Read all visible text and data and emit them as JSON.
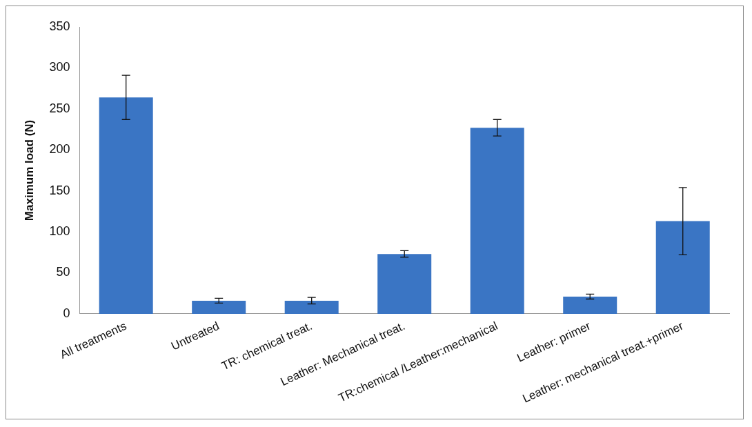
{
  "chart_data": {
    "type": "bar",
    "ylabel": "Maximum load (N)",
    "categories": [
      "All treatments",
      "Untreated",
      "TR: chemical treat.",
      "Leather: Mechanical treat.",
      "TR:chemical /Leather:mechanical",
      "Leather: primer",
      "Leather: mechanical treat.+primer"
    ],
    "values": [
      264,
      16,
      16,
      73,
      227,
      21,
      113
    ],
    "errors": [
      27,
      3,
      4,
      4,
      10,
      3,
      41
    ],
    "color": "#3a75c4",
    "ylim": [
      0,
      350
    ],
    "yticks": [
      0,
      50,
      100,
      150,
      200,
      250,
      300,
      350
    ],
    "grid": false,
    "legend": false
  }
}
